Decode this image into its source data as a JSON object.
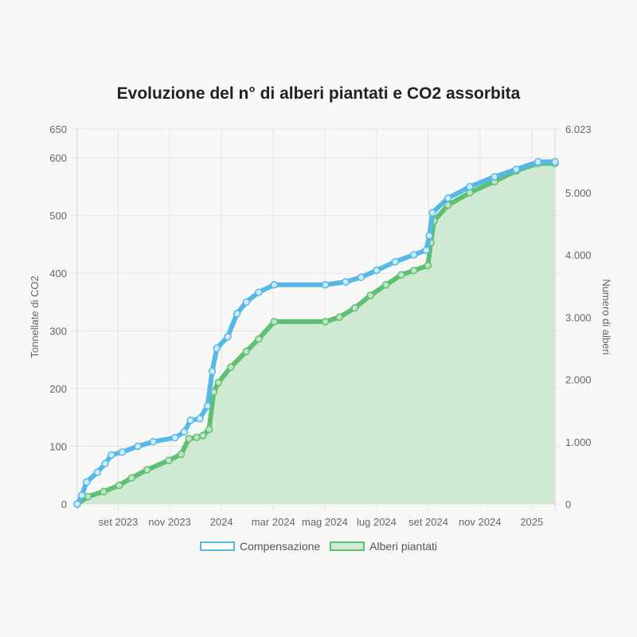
{
  "chart_data": {
    "type": "line",
    "title": "Evoluzione del n° di alberi piantati e CO2 assorbita",
    "x_ticks": [
      {
        "label": "set 2023",
        "t": 2023.667
      },
      {
        "label": "nov 2023",
        "t": 2023.833
      },
      {
        "label": "2024",
        "t": 2024.0
      },
      {
        "label": "mar 2024",
        "t": 2024.167
      },
      {
        "label": "mag 2024",
        "t": 2024.333
      },
      {
        "label": "lug 2024",
        "t": 2024.5
      },
      {
        "label": "set 2024",
        "t": 2024.667
      },
      {
        "label": "nov 2024",
        "t": 2024.833
      },
      {
        "label": "2025",
        "t": 2025.0
      }
    ],
    "xlim": [
      2023.535,
      2025.075
    ],
    "y_left": {
      "label": "Tonnellate di CO2",
      "ylim": [
        0,
        650
      ],
      "ticks": [
        {
          "v": 0,
          "label": "0"
        },
        {
          "v": 100,
          "label": "100"
        },
        {
          "v": 200,
          "label": "200"
        },
        {
          "v": 300,
          "label": "300"
        },
        {
          "v": 400,
          "label": "400"
        },
        {
          "v": 500,
          "label": "500"
        },
        {
          "v": 600,
          "label": "600"
        },
        {
          "v": 650,
          "label": "650"
        }
      ]
    },
    "y_right": {
      "label": "Numero di alberi",
      "ylim": [
        0,
        6023
      ],
      "ticks": [
        {
          "v": 0,
          "label": "0"
        },
        {
          "v": 1000,
          "label": "1.000"
        },
        {
          "v": 2000,
          "label": "2.000"
        },
        {
          "v": 3000,
          "label": "3.000"
        },
        {
          "v": 4000,
          "label": "4.000"
        },
        {
          "v": 5000,
          "label": "5.000"
        },
        {
          "v": 6023,
          "label": "6.023"
        }
      ]
    },
    "series": [
      {
        "name": "Compensazione",
        "axis": "left",
        "color": "#55b8e6",
        "points": [
          [
            2023.535,
            0
          ],
          [
            2023.55,
            15
          ],
          [
            2023.565,
            38
          ],
          [
            2023.6,
            55
          ],
          [
            2023.625,
            70
          ],
          [
            2023.645,
            85
          ],
          [
            2023.68,
            90
          ],
          [
            2023.73,
            100
          ],
          [
            2023.78,
            108
          ],
          [
            2023.85,
            115
          ],
          [
            2023.88,
            125
          ],
          [
            2023.9,
            145
          ],
          [
            2023.93,
            148
          ],
          [
            2023.955,
            170
          ],
          [
            2023.97,
            230
          ],
          [
            2023.985,
            270
          ],
          [
            2024.02,
            290
          ],
          [
            2024.05,
            330
          ],
          [
            2024.08,
            350
          ],
          [
            2024.12,
            367
          ],
          [
            2024.17,
            380
          ],
          [
            2024.335,
            380
          ],
          [
            2024.4,
            385
          ],
          [
            2024.45,
            393
          ],
          [
            2024.5,
            405
          ],
          [
            2024.56,
            420
          ],
          [
            2024.62,
            432
          ],
          [
            2024.66,
            440
          ],
          [
            2024.67,
            465
          ],
          [
            2024.68,
            505
          ],
          [
            2024.73,
            530
          ],
          [
            2024.8,
            550
          ],
          [
            2024.88,
            567
          ],
          [
            2024.95,
            580
          ],
          [
            2025.02,
            593
          ],
          [
            2025.075,
            593
          ]
        ]
      },
      {
        "name": "Alberi piantati",
        "axis": "right",
        "color": "#5fbf72",
        "fill": "#cfe9d2",
        "points": [
          [
            2023.535,
            0
          ],
          [
            2023.57,
            120
          ],
          [
            2023.62,
            200
          ],
          [
            2023.67,
            300
          ],
          [
            2023.71,
            420
          ],
          [
            2023.76,
            550
          ],
          [
            2023.83,
            700
          ],
          [
            2023.87,
            800
          ],
          [
            2023.895,
            1050
          ],
          [
            2023.92,
            1070
          ],
          [
            2023.94,
            1100
          ],
          [
            2023.96,
            1200
          ],
          [
            2023.975,
            1800
          ],
          [
            2023.99,
            1950
          ],
          [
            2024.03,
            2200
          ],
          [
            2024.08,
            2450
          ],
          [
            2024.12,
            2650
          ],
          [
            2024.17,
            2930
          ],
          [
            2024.335,
            2930
          ],
          [
            2024.38,
            3000
          ],
          [
            2024.43,
            3150
          ],
          [
            2024.48,
            3350
          ],
          [
            2024.53,
            3520
          ],
          [
            2024.58,
            3680
          ],
          [
            2024.62,
            3750
          ],
          [
            2024.665,
            3830
          ],
          [
            2024.675,
            4200
          ],
          [
            2024.685,
            4550
          ],
          [
            2024.73,
            4800
          ],
          [
            2024.8,
            5000
          ],
          [
            2024.88,
            5180
          ],
          [
            2024.95,
            5350
          ],
          [
            2025.02,
            5470
          ],
          [
            2025.075,
            5470
          ]
        ]
      }
    ]
  }
}
